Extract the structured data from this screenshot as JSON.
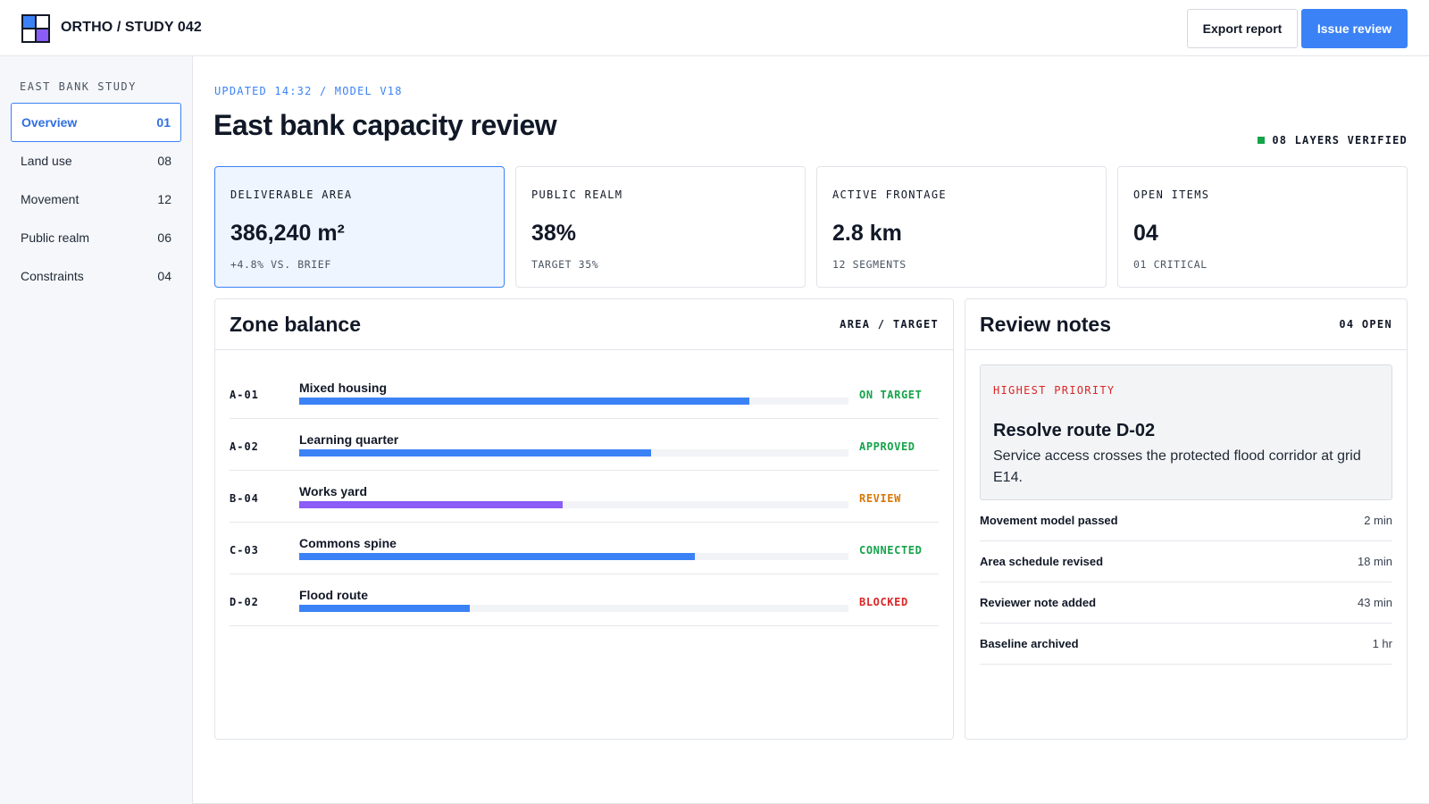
{
  "header": {
    "title": "ORTHO / STUDY 042",
    "export_label": "Export report",
    "issue_label": "Issue review"
  },
  "sidebar": {
    "section_label": "EAST BANK STUDY",
    "items": [
      {
        "label": "Overview",
        "count": "01",
        "active": true
      },
      {
        "label": "Land use",
        "count": "08"
      },
      {
        "label": "Movement",
        "count": "12"
      },
      {
        "label": "Public realm",
        "count": "06"
      },
      {
        "label": "Constraints",
        "count": "04"
      }
    ]
  },
  "main": {
    "meta": "UPDATED 14:32 / MODEL V18",
    "title": "East bank capacity review",
    "verified": "08 LAYERS VERIFIED"
  },
  "kpis": [
    {
      "label": "DELIVERABLE AREA",
      "value": "386,240 m²",
      "sub": "+4.8% VS. BRIEF"
    },
    {
      "label": "PUBLIC REALM",
      "value": "38%",
      "sub": "TARGET 35%"
    },
    {
      "label": "ACTIVE FRONTAGE",
      "value": "2.8 km",
      "sub": "12 SEGMENTS"
    },
    {
      "label": "OPEN ITEMS",
      "value": "04",
      "sub": "01 CRITICAL"
    }
  ],
  "zone_balance": {
    "title": "Zone balance",
    "aside": "AREA / TARGET",
    "rows": [
      {
        "code": "A-01",
        "name": "Mixed housing",
        "progress": 0.82,
        "status": "ON TARGET",
        "status_color": "#16a34a",
        "bar_color": "#3b82f6"
      },
      {
        "code": "A-02",
        "name": "Learning quarter",
        "progress": 0.64,
        "status": "APPROVED",
        "status_color": "#16a34a",
        "bar_color": "#3b82f6"
      },
      {
        "code": "B-04",
        "name": "Works yard",
        "progress": 0.48,
        "status": "REVIEW",
        "status_color": "#d97706",
        "bar_color": "#8b5cf6"
      },
      {
        "code": "C-03",
        "name": "Commons spine",
        "progress": 0.72,
        "status": "CONNECTED",
        "status_color": "#16a34a",
        "bar_color": "#3b82f6"
      },
      {
        "code": "D-02",
        "name": "Flood route",
        "progress": 0.31,
        "status": "BLOCKED",
        "status_color": "#dc2626",
        "bar_color": "#3b82f6"
      }
    ]
  },
  "review_notes": {
    "title": "Review notes",
    "aside": "04 OPEN",
    "priority": {
      "label": "HIGHEST PRIORITY",
      "title": "Resolve route D-02",
      "body": "Service access crosses the protected flood corridor at grid E14."
    },
    "items": [
      {
        "title": "Movement model passed",
        "time": "2 min"
      },
      {
        "title": "Area schedule revised",
        "time": "18 min"
      },
      {
        "title": "Reviewer note added",
        "time": "43 min"
      },
      {
        "title": "Baseline archived",
        "time": "1 hr"
      }
    ]
  },
  "colors": {
    "accent": "#3b82f6",
    "secondary": "#8b5cf6",
    "success": "#16a34a",
    "warning": "#d97706",
    "danger": "#dc2626"
  }
}
